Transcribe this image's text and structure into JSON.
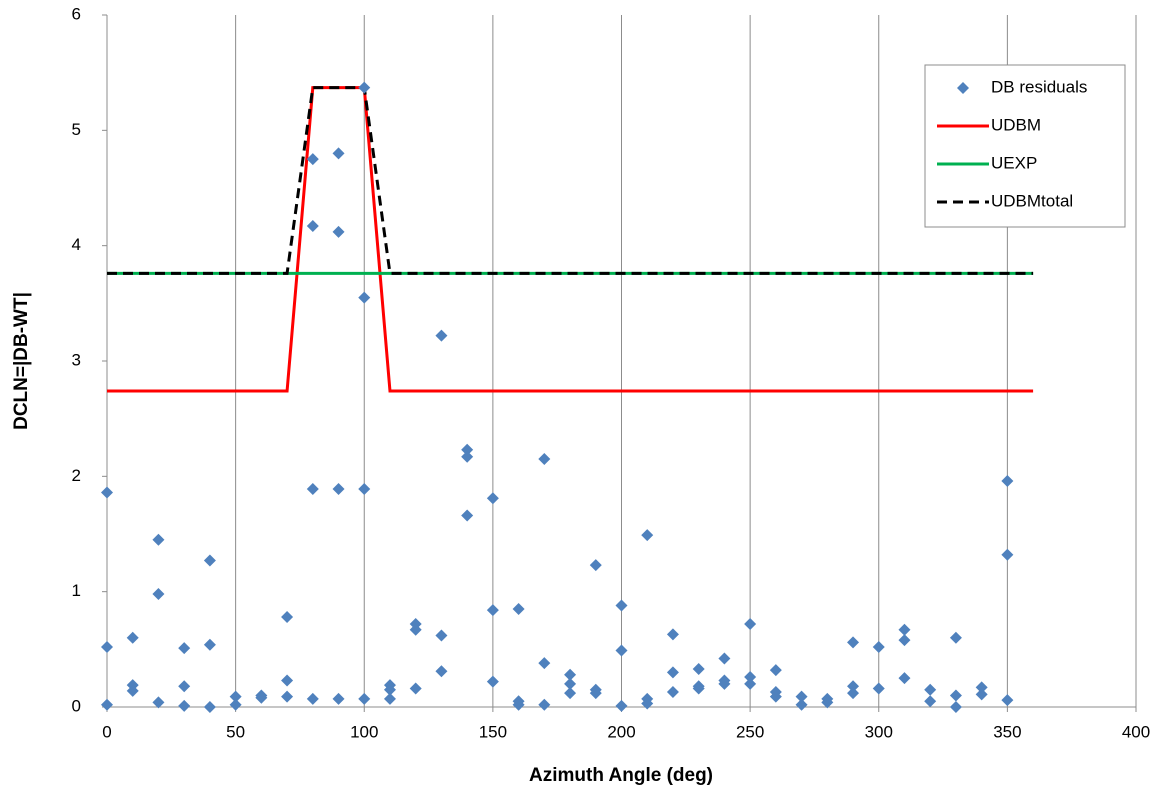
{
  "chart_data": {
    "type": "scatter",
    "xlabel": "Azimuth Angle (deg)",
    "ylabel": "DCLN=|DB-WT|",
    "xlim": [
      0,
      400
    ],
    "xticks": [
      0,
      50,
      100,
      150,
      200,
      250,
      300,
      350,
      400
    ],
    "ylim": [
      0,
      6
    ],
    "yticks": [
      0,
      1,
      2,
      3,
      4,
      5,
      6
    ],
    "grid": "x",
    "legend": "upper right",
    "series": [
      {
        "name": "DB residuals",
        "mode": "markers",
        "color": "#4f81bd",
        "x": [
          0,
          0,
          0,
          10,
          10,
          10,
          20,
          20,
          20,
          30,
          30,
          30,
          40,
          40,
          40,
          50,
          50,
          60,
          60,
          70,
          70,
          70,
          80,
          80,
          80,
          80,
          90,
          90,
          90,
          90,
          100,
          100,
          100,
          100,
          110,
          110,
          110,
          120,
          120,
          120,
          130,
          130,
          130,
          140,
          140,
          140,
          150,
          150,
          150,
          160,
          160,
          160,
          170,
          170,
          170,
          180,
          180,
          180,
          190,
          190,
          190,
          200,
          200,
          200,
          210,
          210,
          210,
          220,
          220,
          220,
          230,
          230,
          230,
          240,
          240,
          240,
          250,
          250,
          250,
          260,
          260,
          260,
          270,
          270,
          280,
          280,
          290,
          290,
          290,
          300,
          300,
          310,
          310,
          310,
          320,
          320,
          330,
          330,
          330,
          340,
          340,
          350,
          350,
          350
        ],
        "values": [
          1.86,
          0.52,
          0.02,
          0.6,
          0.19,
          0.14,
          1.45,
          0.98,
          0.04,
          0.51,
          0.18,
          0.01,
          1.27,
          0.54,
          0.0,
          0.09,
          0.02,
          0.1,
          0.08,
          0.78,
          0.23,
          0.09,
          4.75,
          4.17,
          1.89,
          0.07,
          4.8,
          4.12,
          1.89,
          0.07,
          5.37,
          3.55,
          1.89,
          0.07,
          0.19,
          0.15,
          0.07,
          0.72,
          0.67,
          0.16,
          3.22,
          0.62,
          0.31,
          2.23,
          2.17,
          1.66,
          1.81,
          0.84,
          0.22,
          0.85,
          0.05,
          0.02,
          2.15,
          0.38,
          0.02,
          0.28,
          0.2,
          0.12,
          1.23,
          0.15,
          0.12,
          0.88,
          0.49,
          0.01,
          1.49,
          0.07,
          0.03,
          0.63,
          0.3,
          0.13,
          0.33,
          0.18,
          0.16,
          0.42,
          0.23,
          0.2,
          0.72,
          0.26,
          0.2,
          0.32,
          0.13,
          0.09,
          0.09,
          0.02,
          0.07,
          0.04,
          0.56,
          0.18,
          0.12,
          0.52,
          0.16,
          0.67,
          0.58,
          0.25,
          0.15,
          0.05,
          0.6,
          0.1,
          0.0,
          0.17,
          0.11,
          1.96,
          1.32,
          0.06
        ]
      },
      {
        "name": "UDBM",
        "mode": "line",
        "color": "#ff0000",
        "dash": false,
        "x": [
          0,
          70,
          80,
          100,
          110,
          360
        ],
        "values": [
          2.74,
          2.74,
          5.37,
          5.37,
          2.74,
          2.74
        ]
      },
      {
        "name": "UEXP",
        "mode": "line",
        "color": "#00b050",
        "dash": false,
        "x": [
          0,
          360
        ],
        "values": [
          3.76,
          3.76
        ]
      },
      {
        "name": "UDBMtotal",
        "mode": "line",
        "color": "#000000",
        "dash": true,
        "x": [
          0,
          70,
          80,
          100,
          110,
          360
        ],
        "values": [
          3.76,
          3.76,
          5.37,
          5.37,
          3.76,
          3.76
        ]
      }
    ]
  }
}
